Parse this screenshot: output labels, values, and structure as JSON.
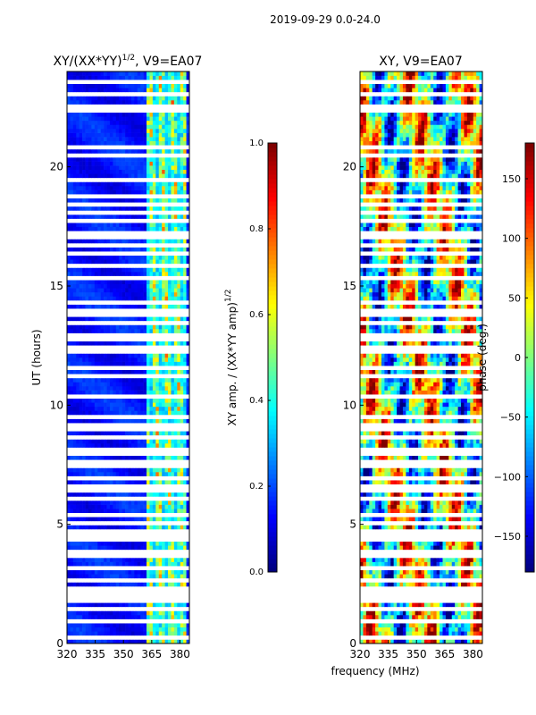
{
  "suptitle": "2019-09-29 0.0-24.0",
  "colors": {
    "jet": [
      "#00007f",
      "#0000ff",
      "#007fff",
      "#00ffff",
      "#7fff7f",
      "#ffff00",
      "#ff7f00",
      "#ff0000",
      "#7f0000"
    ],
    "gap": "#ffffff"
  },
  "chart_data": [
    {
      "type": "heatmap",
      "title_main": "XY/(XX*YY)",
      "title_sup": "1/2",
      "title_rest": ", V9=EA07",
      "xlabel": "",
      "ylabel": "UT (hours)",
      "xlim": [
        320,
        385
      ],
      "ylim": [
        0,
        24
      ],
      "xticks": [
        "320",
        "335",
        "350",
        "365",
        "380"
      ],
      "yticks": [
        "0",
        "5",
        "10",
        "15",
        "20"
      ],
      "colorbar": {
        "label": "XY amp. / (XX*YY amp)",
        "label_sup": "1/2",
        "range": [
          0.0,
          1.0
        ],
        "ticks": [
          "0.0",
          "0.2",
          "0.4",
          "0.6",
          "0.8",
          "1.0"
        ]
      },
      "bright_band_mhz": [
        363,
        383
      ],
      "typical_value_outside_band": 0.12,
      "typical_value_inside_band": 0.55
    },
    {
      "type": "heatmap",
      "title": "XY, V9=EA07",
      "xlabel": "frequency (MHz)",
      "ylabel": "",
      "xlim": [
        320,
        385
      ],
      "ylim": [
        0,
        24
      ],
      "xticks": [
        "320",
        "335",
        "350",
        "365",
        "380"
      ],
      "yticks": [
        "0",
        "5",
        "10",
        "15",
        "20"
      ],
      "colorbar": {
        "label": "phase (deg.)",
        "range": [
          -180,
          180
        ],
        "ticks": [
          "−150",
          "−100",
          "−50",
          "0",
          "50",
          "100",
          "150"
        ],
        "tick_values": [
          -150,
          -100,
          -50,
          0,
          50,
          100,
          150
        ]
      }
    }
  ]
}
